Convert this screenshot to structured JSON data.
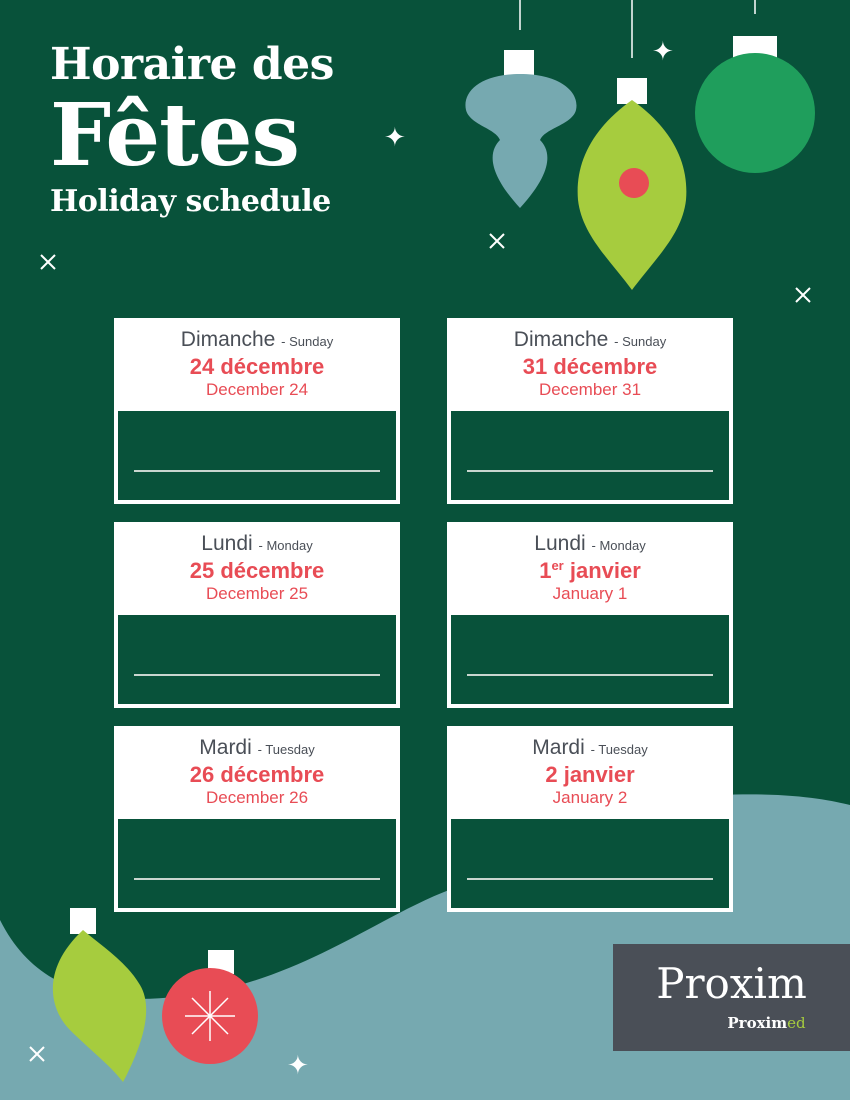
{
  "title": {
    "line1": "Horaire des",
    "line2": "Fêtes",
    "line3": "Holiday schedule"
  },
  "colors": {
    "background": "#08523a",
    "wave": "#76a9b0",
    "accent_red": "#e84c55",
    "accent_lime": "#a6cc3e",
    "logo_bg": "#4a4f57"
  },
  "cards": [
    {
      "day_fr": "Dimanche",
      "day_en": "- Sunday",
      "date_num": "24",
      "date_sup": "",
      "date_fr": " décembre",
      "date_en": "December 24",
      "hours": ""
    },
    {
      "day_fr": "Dimanche",
      "day_en": "- Sunday",
      "date_num": "31",
      "date_sup": "",
      "date_fr": " décembre",
      "date_en": "December 31",
      "hours": ""
    },
    {
      "day_fr": "Lundi",
      "day_en": "- Monday",
      "date_num": "25",
      "date_sup": "",
      "date_fr": " décembre",
      "date_en": "December 25",
      "hours": ""
    },
    {
      "day_fr": "Lundi",
      "day_en": "- Monday",
      "date_num": "1",
      "date_sup": "er",
      "date_fr": " janvier",
      "date_en": "January 1",
      "hours": ""
    },
    {
      "day_fr": "Mardi",
      "day_en": "- Tuesday",
      "date_num": "26",
      "date_sup": "",
      "date_fr": " décembre",
      "date_en": "December 26",
      "hours": ""
    },
    {
      "day_fr": "Mardi",
      "day_en": "- Tuesday",
      "date_num": "2",
      "date_sup": "",
      "date_fr": " janvier",
      "date_en": "January 2",
      "hours": ""
    }
  ],
  "logo": {
    "brand": "Proxim",
    "sub_brand_a": "Prox",
    "sub_brand_b": "im",
    "sub_brand_c": "ed"
  },
  "icons": [
    "ornament-icon",
    "sparkle-icon"
  ]
}
